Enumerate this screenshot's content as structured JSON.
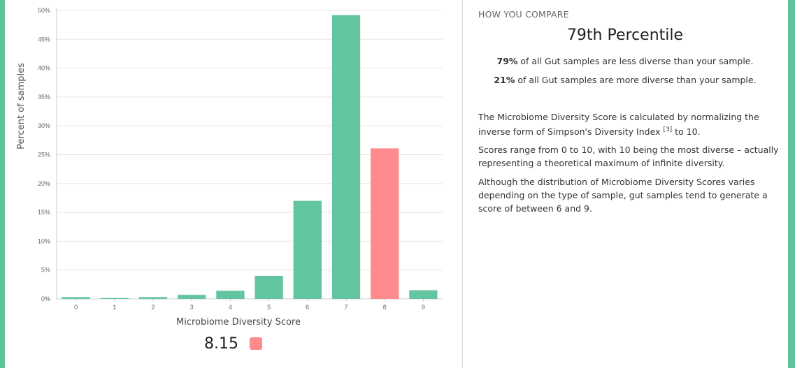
{
  "chart_data": {
    "type": "bar",
    "categories": [
      "0",
      "1",
      "2",
      "3",
      "4",
      "5",
      "6",
      "7",
      "8",
      "9"
    ],
    "values": [
      0.3,
      0.15,
      0.3,
      0.7,
      1.4,
      4.0,
      17.0,
      49.2,
      26.1,
      1.5
    ],
    "highlight_index": 8,
    "xlabel": "Microbiome Diversity Score",
    "ylabel": "Percent of samples",
    "ylim": [
      0,
      50
    ],
    "y_ticks": [
      0,
      5,
      10,
      15,
      20,
      25,
      30,
      35,
      40,
      45,
      50
    ],
    "y_tick_labels": [
      "0%",
      "5%",
      "10%",
      "15%",
      "20%",
      "25%",
      "30%",
      "35%",
      "40%",
      "45%",
      "50%"
    ],
    "grid": true,
    "colors": {
      "bar": "#63c59f",
      "highlight": "#ff8a8e",
      "grid": "#e6e6e6",
      "axis": "#cccccc"
    }
  },
  "score": {
    "value": "8.15",
    "swatch_color": "#ff8a8e"
  },
  "info": {
    "heading": "HOW YOU COMPARE",
    "title": "79th Percentile",
    "less_pct": "79%",
    "less_text": " of all Gut samples are less diverse than your sample.",
    "more_pct": "21%",
    "more_text": " of all Gut samples are more diverse than your sample.",
    "desc1_a": "The Microbiome Diversity Score is calculated by normalizing the inverse form of Simpson's Diversity Index ",
    "desc1_ref": "[3]",
    "desc1_b": " to 10.",
    "desc2": "Scores range from 0 to 10, with 10 being the most diverse – actually representing a theoretical maximum of infinite diversity.",
    "desc3": "Although the distribution of Microbiome Diversity Scores varies depending on the type of sample, gut samples tend to generate a score of between 6 and 9."
  }
}
